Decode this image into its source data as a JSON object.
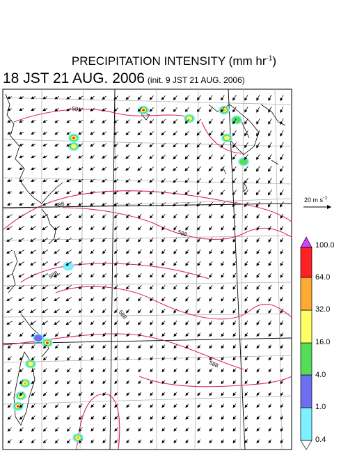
{
  "title_main": "PRECIPITATION INTENSITY (mm hr",
  "title_exp": "-1",
  "title_close": ")",
  "valid_time": "18 JST 21 AUG. 2006",
  "init_time": "(init. 9 JST 21 AUG. 2006)",
  "reference_vector": {
    "label": "20 m s",
    "exp": "-1"
  },
  "contour_labels": [
    "591",
    "588",
    "588",
    "588",
    "588",
    "588"
  ],
  "colorbar": {
    "levels": [
      "0.4",
      "1.0",
      "4.0",
      "16.0",
      "32.0",
      "64.0",
      "100.0"
    ],
    "colors": [
      "#7ff0ff",
      "#6e6ef2",
      "#55dd55",
      "#ffff66",
      "#ffaa33",
      "#ff2222",
      "#cc44ff"
    ]
  },
  "colors": {
    "contour": "#dd2277",
    "grid": "#aaaaaa",
    "coast": "#000000"
  }
}
